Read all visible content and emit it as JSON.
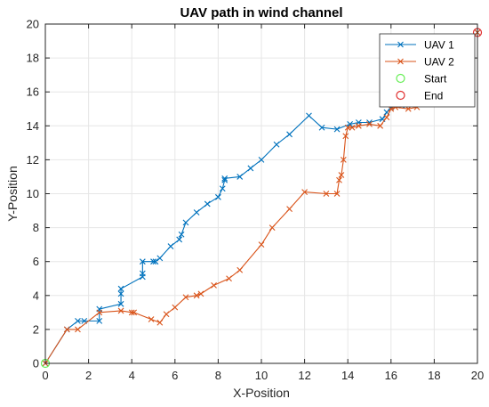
{
  "chart_data": {
    "type": "line",
    "title": "UAV path in wind channel",
    "xlabel": "X-Position",
    "ylabel": "Y-Position",
    "xlim": [
      0,
      20
    ],
    "ylim": [
      0,
      20
    ],
    "xticks": [
      "0",
      "2",
      "4",
      "6",
      "8",
      "10",
      "12",
      "14",
      "16",
      "18",
      "20"
    ],
    "yticks": [
      "0",
      "2",
      "4",
      "6",
      "8",
      "10",
      "12",
      "14",
      "16",
      "18",
      "20"
    ],
    "grid": true,
    "legend_position": "top-right",
    "series": [
      {
        "name": "UAV 1",
        "color": "#0072bd",
        "marker": "x",
        "x": [
          0,
          1.0,
          1.5,
          1.8,
          2.5,
          2.5,
          3.5,
          3.5,
          3.5,
          4.5,
          4.5,
          4.5,
          5.0,
          5.1,
          5.3,
          5.8,
          6.2,
          6.3,
          6.5,
          7.0,
          7.5,
          8.0,
          8.2,
          8.3,
          8.3,
          9.0,
          9.5,
          10.0,
          10.7,
          11.3,
          12.2,
          12.8,
          13.5,
          14.1,
          14.5,
          15.0,
          15.6,
          15.8,
          16.0,
          16.5,
          17.0,
          17.5,
          18.5,
          19.5,
          20.0
        ],
        "y": [
          0,
          2.0,
          2.5,
          2.5,
          2.5,
          3.2,
          3.5,
          4.1,
          4.4,
          5.1,
          5.3,
          6.0,
          6.0,
          6.0,
          6.2,
          6.9,
          7.3,
          7.6,
          8.3,
          8.9,
          9.4,
          9.8,
          10.3,
          10.8,
          10.9,
          11.0,
          11.5,
          12.0,
          12.9,
          13.5,
          14.6,
          13.9,
          13.8,
          14.1,
          14.2,
          14.2,
          14.4,
          14.8,
          15.1,
          15.2,
          15.3,
          15.7,
          16.7,
          19.0,
          19.5
        ]
      },
      {
        "name": "UAV 2",
        "color": "#d95319",
        "marker": "x",
        "x": [
          0,
          1.0,
          1.5,
          2.5,
          3.5,
          4.0,
          4.1,
          4.9,
          5.3,
          5.6,
          6.0,
          6.5,
          7.0,
          7.2,
          7.8,
          8.5,
          9.0,
          10.0,
          10.5,
          11.3,
          12.0,
          13.0,
          13.5,
          13.6,
          13.7,
          13.8,
          13.9,
          14.0,
          14.2,
          14.5,
          15.0,
          15.5,
          15.8,
          16.0,
          16.2,
          16.8,
          17.2,
          18.0,
          19.2,
          20.0
        ],
        "y": [
          0,
          2.0,
          2.0,
          3.0,
          3.1,
          3.0,
          3.0,
          2.6,
          2.4,
          2.9,
          3.3,
          3.9,
          4.0,
          4.1,
          4.6,
          5.0,
          5.5,
          7.0,
          8.0,
          9.1,
          10.1,
          10.0,
          10.0,
          10.8,
          11.1,
          12.0,
          13.4,
          13.9,
          13.9,
          14.0,
          14.1,
          14.0,
          14.5,
          15.0,
          15.1,
          15.0,
          15.1,
          16.5,
          18.5,
          19.5
        ]
      },
      {
        "name": "Start",
        "color": "#66ee55",
        "marker": "circle",
        "x": [
          0
        ],
        "y": [
          0
        ]
      },
      {
        "name": "End",
        "color": "#e03030",
        "marker": "circle",
        "x": [
          20
        ],
        "y": [
          19.5
        ]
      }
    ]
  }
}
